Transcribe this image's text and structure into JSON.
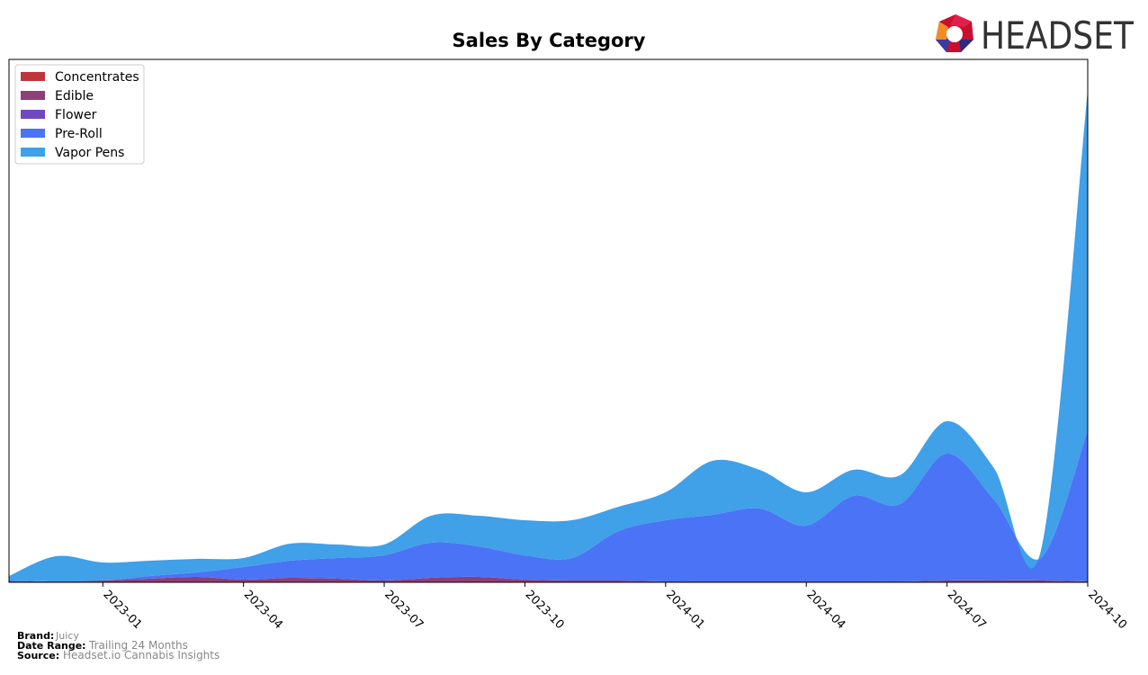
{
  "logo": "HEADSET",
  "chart_data": {
    "type": "stacked-area",
    "title": "Sales By Category",
    "x": [
      "2022-11",
      "2022-12",
      "2023-01",
      "2023-02",
      "2023-03",
      "2023-04",
      "2023-05",
      "2023-06",
      "2023-07",
      "2023-08",
      "2023-09",
      "2023-10",
      "2023-11",
      "2023-12",
      "2024-01",
      "2024-02",
      "2024-03",
      "2024-04",
      "2024-05",
      "2024-06",
      "2024-07",
      "2024-08",
      "2024-09",
      "2024-10"
    ],
    "xlim": [
      "2022-11",
      "2024-10"
    ],
    "xticks": [
      "2023-01",
      "2023-04",
      "2023-07",
      "2023-10",
      "2024-01",
      "2024-04",
      "2024-07",
      "2024-10"
    ],
    "ylim": [
      0,
      581
    ],
    "legend": "upper left",
    "series": [
      {
        "name": "Concentrates",
        "color": "#c0353a",
        "values": [
          1,
          1,
          1,
          1,
          1,
          1,
          1,
          1,
          1,
          1,
          1,
          1,
          1,
          1,
          1,
          1,
          1,
          1,
          1,
          1,
          1,
          1,
          1,
          1
        ]
      },
      {
        "name": "Edible",
        "color": "#8e3f78",
        "values": [
          0,
          0,
          1,
          3,
          5,
          2,
          4,
          3,
          1,
          4,
          5,
          2,
          1,
          1,
          0,
          0,
          0,
          0,
          0,
          0,
          1,
          1,
          1,
          0
        ]
      },
      {
        "name": "Flower",
        "color": "#7048c0",
        "values": [
          0,
          0,
          0,
          0,
          0,
          0,
          0,
          0,
          0,
          0,
          0,
          0,
          0,
          0,
          0,
          0,
          0,
          0,
          0,
          0,
          0,
          0,
          0,
          0
        ]
      },
      {
        "name": "Pre-Roll",
        "color": "#4a74f5",
        "values": [
          1,
          0,
          0,
          3,
          5,
          14,
          19,
          23,
          28,
          39,
          34,
          27,
          25,
          55,
          68,
          74,
          81,
          62,
          95,
          86,
          141,
          90,
          25,
          168
        ]
      },
      {
        "name": "Vapor Pens",
        "color": "#40a0e8",
        "values": [
          5,
          28,
          20,
          17,
          15,
          10,
          19,
          15,
          12,
          30,
          34,
          39,
          42,
          27,
          31,
          60,
          43,
          37,
          29,
          32,
          36,
          35,
          8,
          378
        ]
      }
    ]
  },
  "footer": {
    "brand_label": "Brand:",
    "brand": "Juicy",
    "range_label": "Date Range:",
    "range": "Trailing 24 Months",
    "source_label": "Source:",
    "source": "Headset.io Cannabis Insights"
  }
}
